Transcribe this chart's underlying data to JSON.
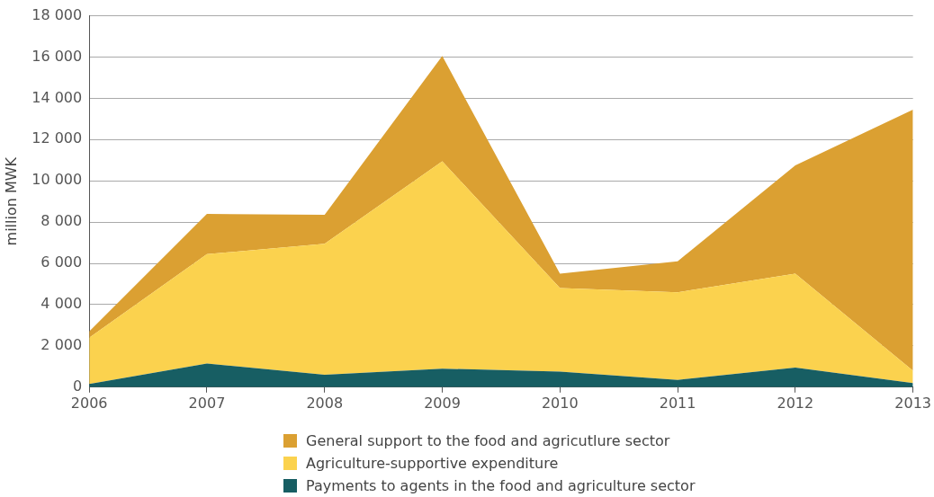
{
  "chart_data": {
    "type": "area",
    "stacked": true,
    "ylabel": "million MWK",
    "categories": [
      "2006",
      "2007",
      "2008",
      "2009",
      "2010",
      "2011",
      "2012",
      "2013"
    ],
    "series": [
      {
        "name": "Payments to agents in the food and agriculture sector",
        "color": "#175e63",
        "values": [
          150,
          1150,
          600,
          900,
          750,
          350,
          950,
          200
        ]
      },
      {
        "name": "Agriculture-supportive expenditure",
        "color": "#fbd24e",
        "values": [
          2250,
          5300,
          6350,
          10050,
          4050,
          4250,
          4550,
          600
        ]
      },
      {
        "name": "General support to the food and agricutlure sector",
        "color": "#dba032",
        "values": [
          300,
          1950,
          1400,
          5100,
          700,
          1500,
          5250,
          12650
        ]
      }
    ],
    "ylim": [
      0,
      18000
    ],
    "yticks": [
      0,
      {
        "value": 2000,
        "label": "2 000"
      },
      {
        "value": 4000,
        "label": "4 000"
      },
      {
        "value": 6000,
        "label": "6 000"
      },
      {
        "value": 8000,
        "label": "8 000"
      },
      {
        "value": 10000,
        "label": "10 000"
      },
      {
        "value": 12000,
        "label": "12 000"
      },
      {
        "value": 14000,
        "label": "14 000"
      },
      {
        "value": 16000,
        "label": "16 000"
      },
      {
        "value": 18000,
        "label": "18 000"
      }
    ],
    "grid": "y",
    "legend": "bottom"
  }
}
